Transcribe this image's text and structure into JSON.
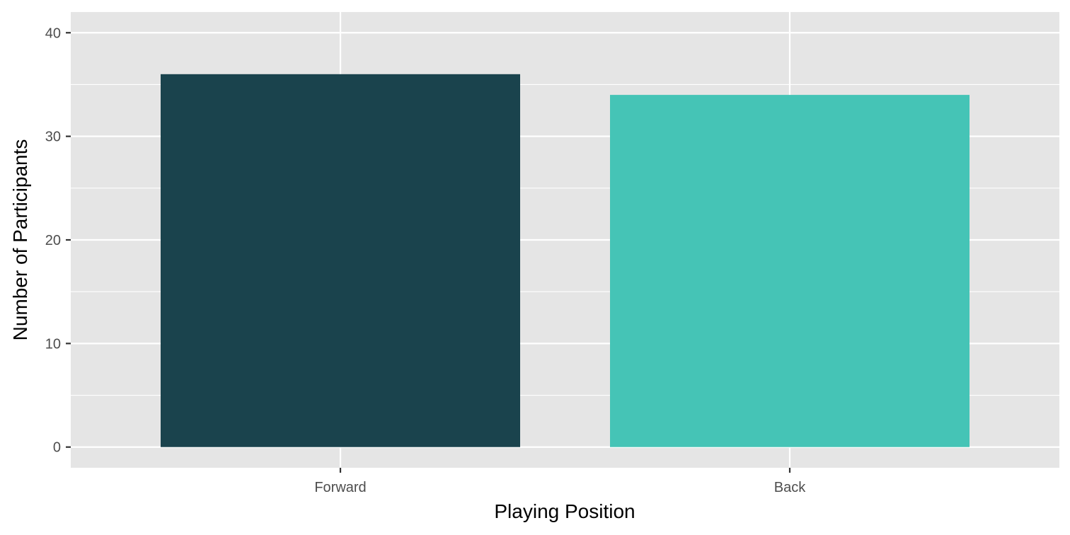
{
  "chart_data": {
    "type": "bar",
    "categories": [
      "Forward",
      "Back"
    ],
    "values": [
      36,
      34
    ],
    "title": "",
    "xlabel": "Playing Position",
    "ylabel": "Number of Participants",
    "ylim": [
      -2,
      42
    ],
    "yticks": [
      0,
      10,
      20,
      30,
      40
    ],
    "ytick_labels": [
      "0",
      "10",
      "20",
      "30",
      "40"
    ],
    "grid": true,
    "legend": "none",
    "colors": {
      "bars": [
        "#1a434d",
        "#45c4b6"
      ],
      "panel": "#e5e5e5",
      "grid": "#ffffff",
      "ticks": "#333333",
      "tick_text": "#4d4d4d"
    }
  }
}
